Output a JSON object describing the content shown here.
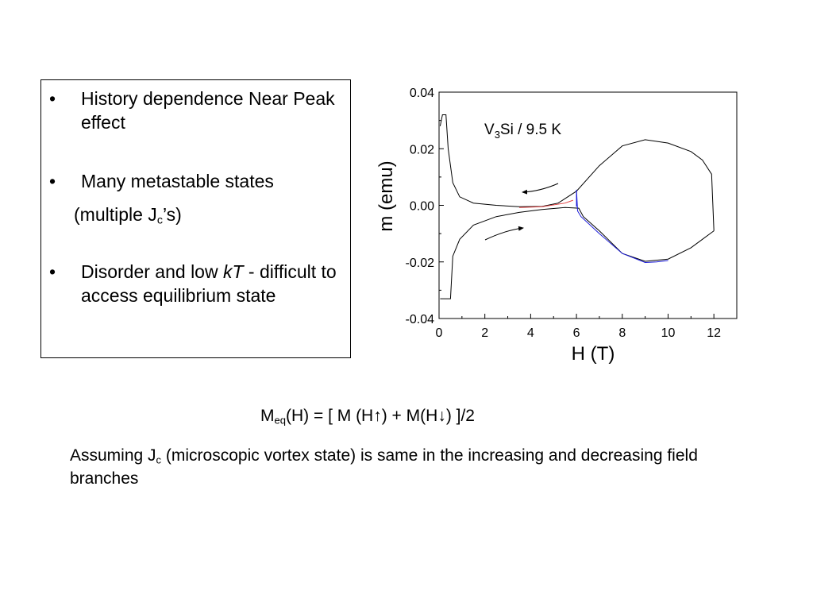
{
  "bullets": {
    "b1": "History dependence Near Peak effect",
    "b2": "Many metastable states",
    "b2_sub_pre": "(multiple J",
    "b2_sub_sub": "c",
    "b2_sub_post": "’s)",
    "b3_pre": "Disorder and low ",
    "b3_italic": "kT",
    "b3_post": " - difficult to access equilibrium state",
    "bullet_symbol": "•"
  },
  "formula": {
    "m": "M",
    "eq": "eq",
    "rest1": "(H) = [ M (H",
    "up": "↑",
    "rest2": ") + M(H",
    "down": "↓",
    "rest3": ") ]/2"
  },
  "assumption": {
    "pre": "Assuming J",
    "sub": "c",
    "post": " (microscopic vortex state) is same in the increasing and decreasing field branches"
  },
  "chart_data": {
    "type": "line",
    "xlabel": "H (T)",
    "ylabel": "m (emu)",
    "annotation": {
      "pre": "V",
      "sub": "3",
      "post": "Si / 9.5 K"
    },
    "xlim": [
      0,
      13
    ],
    "ylim": [
      -0.04,
      0.04
    ],
    "xticks": [
      "0",
      "2",
      "4",
      "6",
      "8",
      "10",
      "12"
    ],
    "yticks": [
      "0.04",
      "0.02",
      "0.00",
      "-0.02",
      "-0.04"
    ],
    "colors": {
      "black": "#000000",
      "blue": "#1a1ad9",
      "red": "#e04040"
    },
    "series": [
      {
        "color": "black",
        "points": [
          [
            0.05,
            0.028
          ],
          [
            0.15,
            0.032
          ],
          [
            0.3,
            0.032
          ],
          [
            0.4,
            0.02
          ],
          [
            0.6,
            0.008
          ],
          [
            0.9,
            0.003
          ],
          [
            1.5,
            0.0008
          ],
          [
            2.5,
            0.0
          ],
          [
            3.5,
            -0.0005
          ],
          [
            4.5,
            -0.0004
          ],
          [
            5.2,
            0.0008
          ],
          [
            6.0,
            0.005
          ],
          [
            7.0,
            0.014
          ],
          [
            8.0,
            0.021
          ],
          [
            9.0,
            0.0232
          ],
          [
            10.0,
            0.022
          ],
          [
            11.0,
            0.019
          ],
          [
            11.5,
            0.016
          ],
          [
            11.9,
            0.011
          ],
          [
            12.0,
            -0.009
          ]
        ]
      },
      {
        "color": "black",
        "points": [
          [
            0.05,
            -0.033
          ],
          [
            0.5,
            -0.033
          ],
          [
            0.6,
            -0.018
          ],
          [
            0.9,
            -0.012
          ],
          [
            1.5,
            -0.007
          ],
          [
            2.5,
            -0.004
          ],
          [
            3.5,
            -0.0025
          ],
          [
            4.5,
            -0.0015
          ],
          [
            5.5,
            -0.0008
          ],
          [
            6.1,
            -0.001
          ],
          [
            6.3,
            -0.004
          ],
          [
            7.0,
            -0.009
          ],
          [
            8.0,
            -0.017
          ],
          [
            9.0,
            -0.0198
          ],
          [
            10.0,
            -0.019
          ],
          [
            11.0,
            -0.015
          ],
          [
            11.5,
            -0.012
          ],
          [
            12.0,
            -0.009
          ]
        ]
      },
      {
        "color": "blue",
        "points": [
          [
            6.0,
            -0.0005
          ],
          [
            6.0,
            0.0055
          ],
          [
            6.05,
            -0.002
          ],
          [
            6.2,
            -0.004
          ],
          [
            7.0,
            -0.01
          ],
          [
            8.0,
            -0.017
          ],
          [
            9.0,
            -0.0202
          ],
          [
            9.5,
            -0.02
          ],
          [
            10.0,
            -0.0195
          ]
        ]
      },
      {
        "color": "red",
        "points": [
          [
            3.5,
            -0.0008
          ],
          [
            4.5,
            -0.0005
          ],
          [
            5.5,
            0.0008
          ],
          [
            5.85,
            0.0018
          ]
        ]
      }
    ]
  }
}
